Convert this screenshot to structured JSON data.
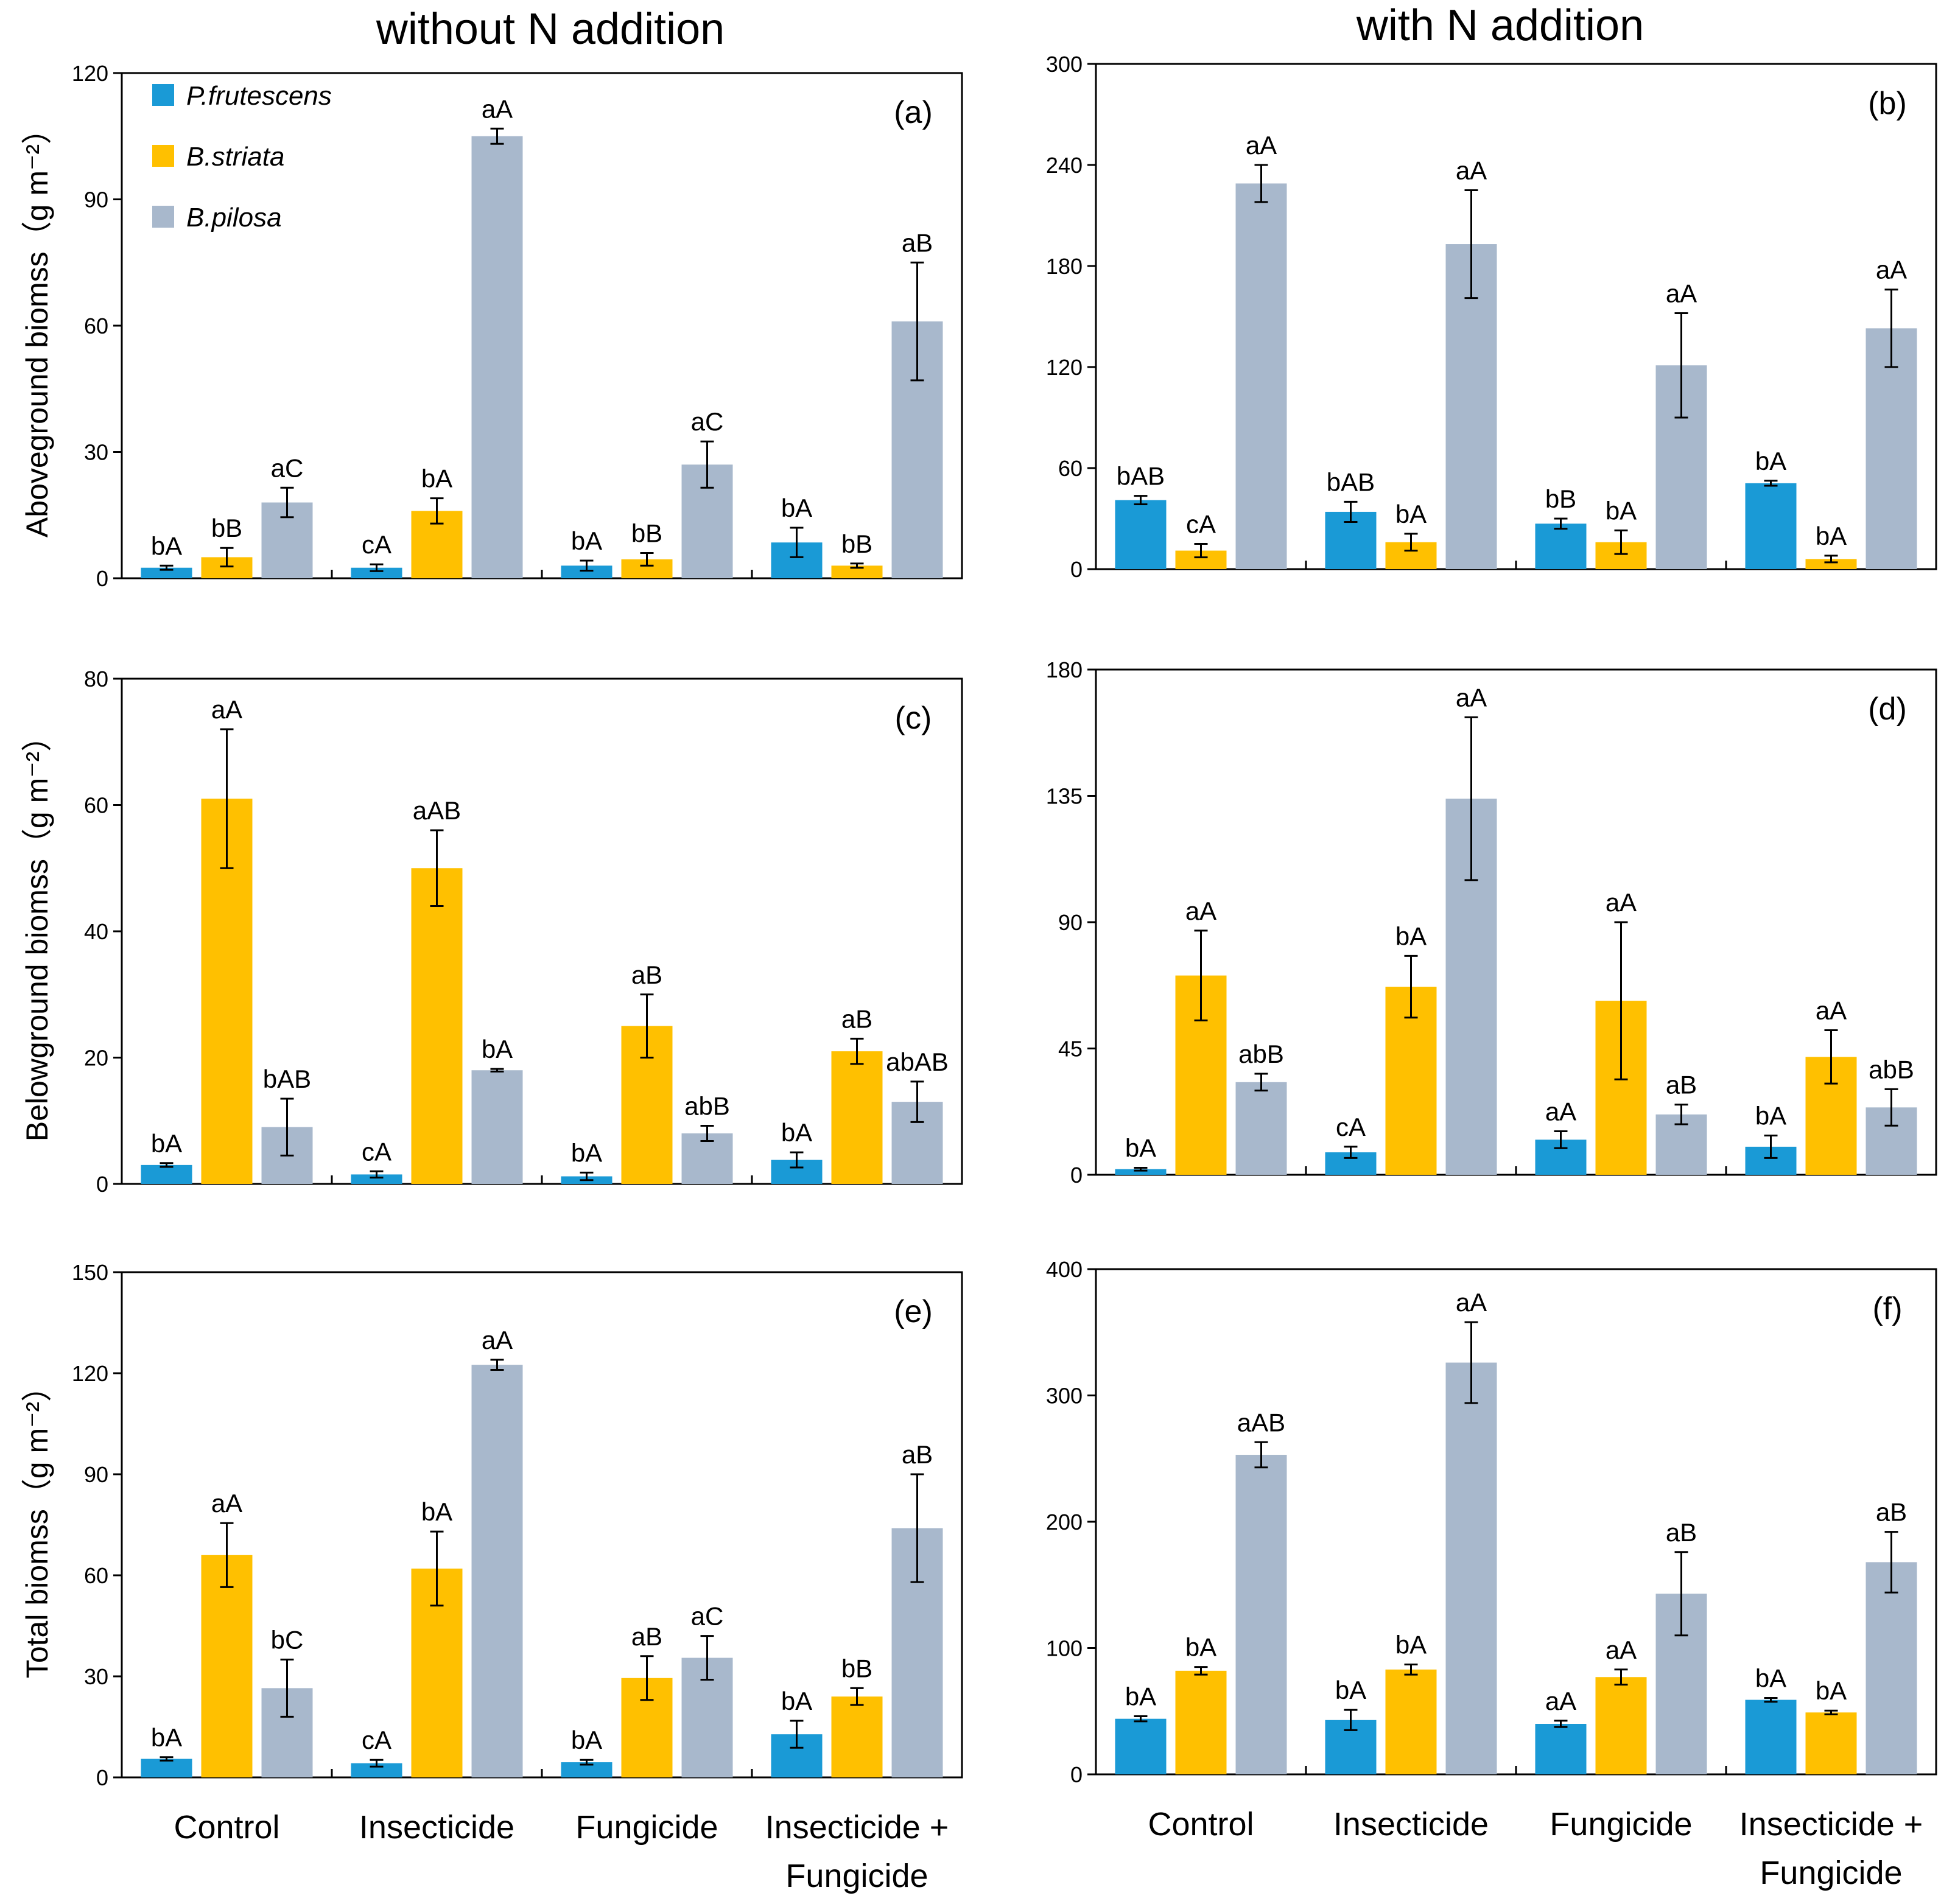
{
  "titles": {
    "left": "without N addition",
    "right": "with N addition"
  },
  "colors": {
    "P.frutescens": "#1a9ad6",
    "B.striata": "#ffc000",
    "B.pilosa": "#a8b8cc"
  },
  "legend": [
    "P.frutescens",
    "B.striata",
    "B.pilosa"
  ],
  "categories_left": [
    [
      "Control"
    ],
    [
      "Insecticide"
    ],
    [
      "Fungicide"
    ],
    [
      "Insecticide +",
      "Fungicide"
    ]
  ],
  "categories_right": [
    [
      "Control"
    ],
    [
      "Insecticide"
    ],
    [
      "Fungicide"
    ],
    [
      "Insecticide +",
      "Fungicide"
    ]
  ],
  "chart_data": [
    {
      "panel": "(a)",
      "type": "bar",
      "ylabel": "Aboveground biomss（g m⁻²）",
      "ylim": [
        0,
        120
      ],
      "yticks": [
        0,
        30,
        60,
        90,
        120
      ],
      "categories": [
        "Control",
        "Insecticide",
        "Fungicide",
        "Insecticide + Fungicide"
      ],
      "series": [
        {
          "name": "P.frutescens",
          "values": [
            2.5,
            2.5,
            3,
            8.5
          ],
          "errors": [
            0.5,
            0.8,
            1.2,
            3.5
          ],
          "labels": [
            "bA",
            "cA",
            "bA",
            "bA"
          ]
        },
        {
          "name": "B.striata",
          "values": [
            5,
            16,
            4.5,
            3
          ],
          "errors": [
            2.2,
            3,
            1.5,
            0.5
          ],
          "labels": [
            "bB",
            "bA",
            "bB",
            "bB"
          ]
        },
        {
          "name": "B.pilosa",
          "values": [
            18,
            105,
            27,
            61
          ],
          "errors": [
            3.5,
            1.8,
            5.5,
            14
          ],
          "labels": [
            "aC",
            "aA",
            "aC",
            "aB"
          ]
        }
      ]
    },
    {
      "panel": "(b)",
      "type": "bar",
      "ylabel": "",
      "ylim": [
        0,
        300
      ],
      "yticks": [
        0,
        60,
        120,
        180,
        240,
        300
      ],
      "categories": [
        "Control",
        "Insecticide",
        "Fungicide",
        "Insecticide + Fungicide"
      ],
      "series": [
        {
          "name": "P.frutescens",
          "values": [
            41,
            34,
            27,
            51
          ],
          "errors": [
            2.5,
            6,
            3,
            1.5
          ],
          "labels": [
            "bAB",
            "bAB",
            "bB",
            "bA"
          ]
        },
        {
          "name": "B.striata",
          "values": [
            11,
            16,
            16,
            6
          ],
          "errors": [
            4,
            5,
            7,
            2
          ],
          "labels": [
            "cA",
            "bA",
            "bA",
            "bA"
          ]
        },
        {
          "name": "B.pilosa",
          "values": [
            229,
            193,
            121,
            143
          ],
          "errors": [
            11,
            32,
            31,
            23
          ],
          "labels": [
            "aA",
            "aA",
            "aA",
            "aA"
          ]
        }
      ]
    },
    {
      "panel": "(c)",
      "type": "bar",
      "ylabel": "Belowground biomss（g m⁻²）",
      "ylim": [
        0,
        80
      ],
      "yticks": [
        0,
        20,
        40,
        60,
        80
      ],
      "categories": [
        "Control",
        "Insecticide",
        "Fungicide",
        "Insecticide + Fungicide"
      ],
      "series": [
        {
          "name": "P.frutescens",
          "values": [
            3,
            1.5,
            1.2,
            3.8
          ],
          "errors": [
            0.3,
            0.5,
            0.6,
            1.2
          ],
          "labels": [
            "bA",
            "cA",
            "bA",
            "bA"
          ]
        },
        {
          "name": "B.striata",
          "values": [
            61,
            50,
            25,
            21
          ],
          "errors": [
            11,
            6,
            5,
            2
          ],
          "labels": [
            "aA",
            "aAB",
            "aB",
            "aB"
          ]
        },
        {
          "name": "B.pilosa",
          "values": [
            9,
            18,
            8,
            13
          ],
          "errors": [
            4.5,
            0.2,
            1.2,
            3.2
          ],
          "labels": [
            "bAB",
            "bA",
            "abB",
            "abAB"
          ]
        }
      ]
    },
    {
      "panel": "(d)",
      "type": "bar",
      "ylabel": "",
      "ylim": [
        0,
        180
      ],
      "yticks": [
        0,
        45,
        90,
        135,
        180
      ],
      "categories": [
        "Control",
        "Insecticide",
        "Fungicide",
        "Insecticide + Fungicide"
      ],
      "series": [
        {
          "name": "P.frutescens",
          "values": [
            2,
            8,
            12.5,
            10
          ],
          "errors": [
            0.5,
            2,
            3,
            4
          ],
          "labels": [
            "bA",
            "cA",
            "aA",
            "bA"
          ]
        },
        {
          "name": "B.striata",
          "values": [
            71,
            67,
            62,
            42
          ],
          "errors": [
            16,
            11,
            28,
            9.5
          ],
          "labels": [
            "aA",
            "bA",
            "aA",
            "aA"
          ]
        },
        {
          "name": "B.pilosa",
          "values": [
            33,
            134,
            21.5,
            24
          ],
          "errors": [
            3,
            29,
            3.5,
            6.5
          ],
          "labels": [
            "abB",
            "aA",
            "aB",
            "abB"
          ]
        }
      ]
    },
    {
      "panel": "(e)",
      "type": "bar",
      "ylabel": "Total biomss（g m⁻²）",
      "ylim": [
        0,
        150
      ],
      "yticks": [
        0,
        30,
        60,
        90,
        120,
        150
      ],
      "categories": [
        "Control",
        "Insecticide",
        "Fungicide",
        "Insecticide + Fungicide"
      ],
      "series": [
        {
          "name": "P.frutescens",
          "values": [
            5.5,
            4.2,
            4.5,
            12.8
          ],
          "errors": [
            0.5,
            1,
            0.7,
            4
          ],
          "labels": [
            "bA",
            "cA",
            "bA",
            "bA"
          ]
        },
        {
          "name": "B.striata",
          "values": [
            66,
            62,
            29.5,
            24
          ],
          "errors": [
            9.5,
            11,
            6.5,
            2.5
          ],
          "labels": [
            "aA",
            "bA",
            "aB",
            "bB"
          ]
        },
        {
          "name": "B.pilosa",
          "values": [
            26.5,
            122.5,
            35.5,
            74
          ],
          "errors": [
            8.5,
            1.5,
            6.5,
            16
          ],
          "labels": [
            "bC",
            "aA",
            "aC",
            "aB"
          ]
        }
      ]
    },
    {
      "panel": "(f)",
      "type": "bar",
      "ylabel": "",
      "ylim": [
        0,
        400
      ],
      "yticks": [
        0,
        100,
        200,
        300,
        400
      ],
      "categories": [
        "Control",
        "Insecticide",
        "Fungicide",
        "Insecticide + Fungicide"
      ],
      "series": [
        {
          "name": "P.frutescens",
          "values": [
            44,
            43,
            40,
            59
          ],
          "errors": [
            2,
            8,
            2.5,
            1.5
          ],
          "labels": [
            "bA",
            "bA",
            "aA",
            "bA"
          ]
        },
        {
          "name": "B.striata",
          "values": [
            82,
            83,
            77,
            49
          ],
          "errors": [
            3,
            4,
            6,
            1.5
          ],
          "labels": [
            "bA",
            "bA",
            "aA",
            "bA"
          ]
        },
        {
          "name": "B.pilosa",
          "values": [
            253,
            326,
            143,
            168
          ],
          "errors": [
            10,
            32,
            33,
            24
          ],
          "labels": [
            "aAB",
            "aA",
            "aB",
            "aB"
          ]
        }
      ]
    }
  ]
}
